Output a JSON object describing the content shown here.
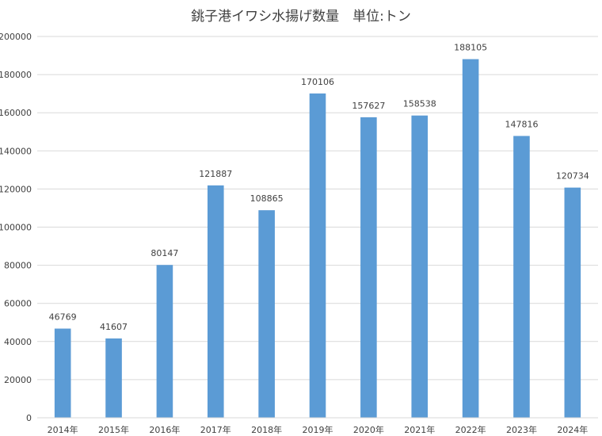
{
  "chart_data": {
    "type": "bar",
    "title": "銚子港イワシ水揚げ数量　単位:トン",
    "xlabel": "",
    "ylabel": "",
    "categories": [
      "2014年",
      "2015年",
      "2016年",
      "2017年",
      "2018年",
      "2019年",
      "2020年",
      "2021年",
      "2022年",
      "2023年",
      "2024年"
    ],
    "values": [
      46769,
      41607,
      80147,
      121887,
      108865,
      170106,
      157627,
      158538,
      188105,
      147816,
      120734
    ],
    "ylim": [
      0,
      200000
    ],
    "y_ticks": [
      "0",
      "20000",
      "40000",
      "60000",
      "80000",
      "100000",
      "120000",
      "140000",
      "160000",
      "180000",
      "200000"
    ],
    "grid": true,
    "legend": "none",
    "bar_color": "#5b9bd5",
    "grid_color": "#d9d9d9",
    "text_color": "#404040"
  }
}
